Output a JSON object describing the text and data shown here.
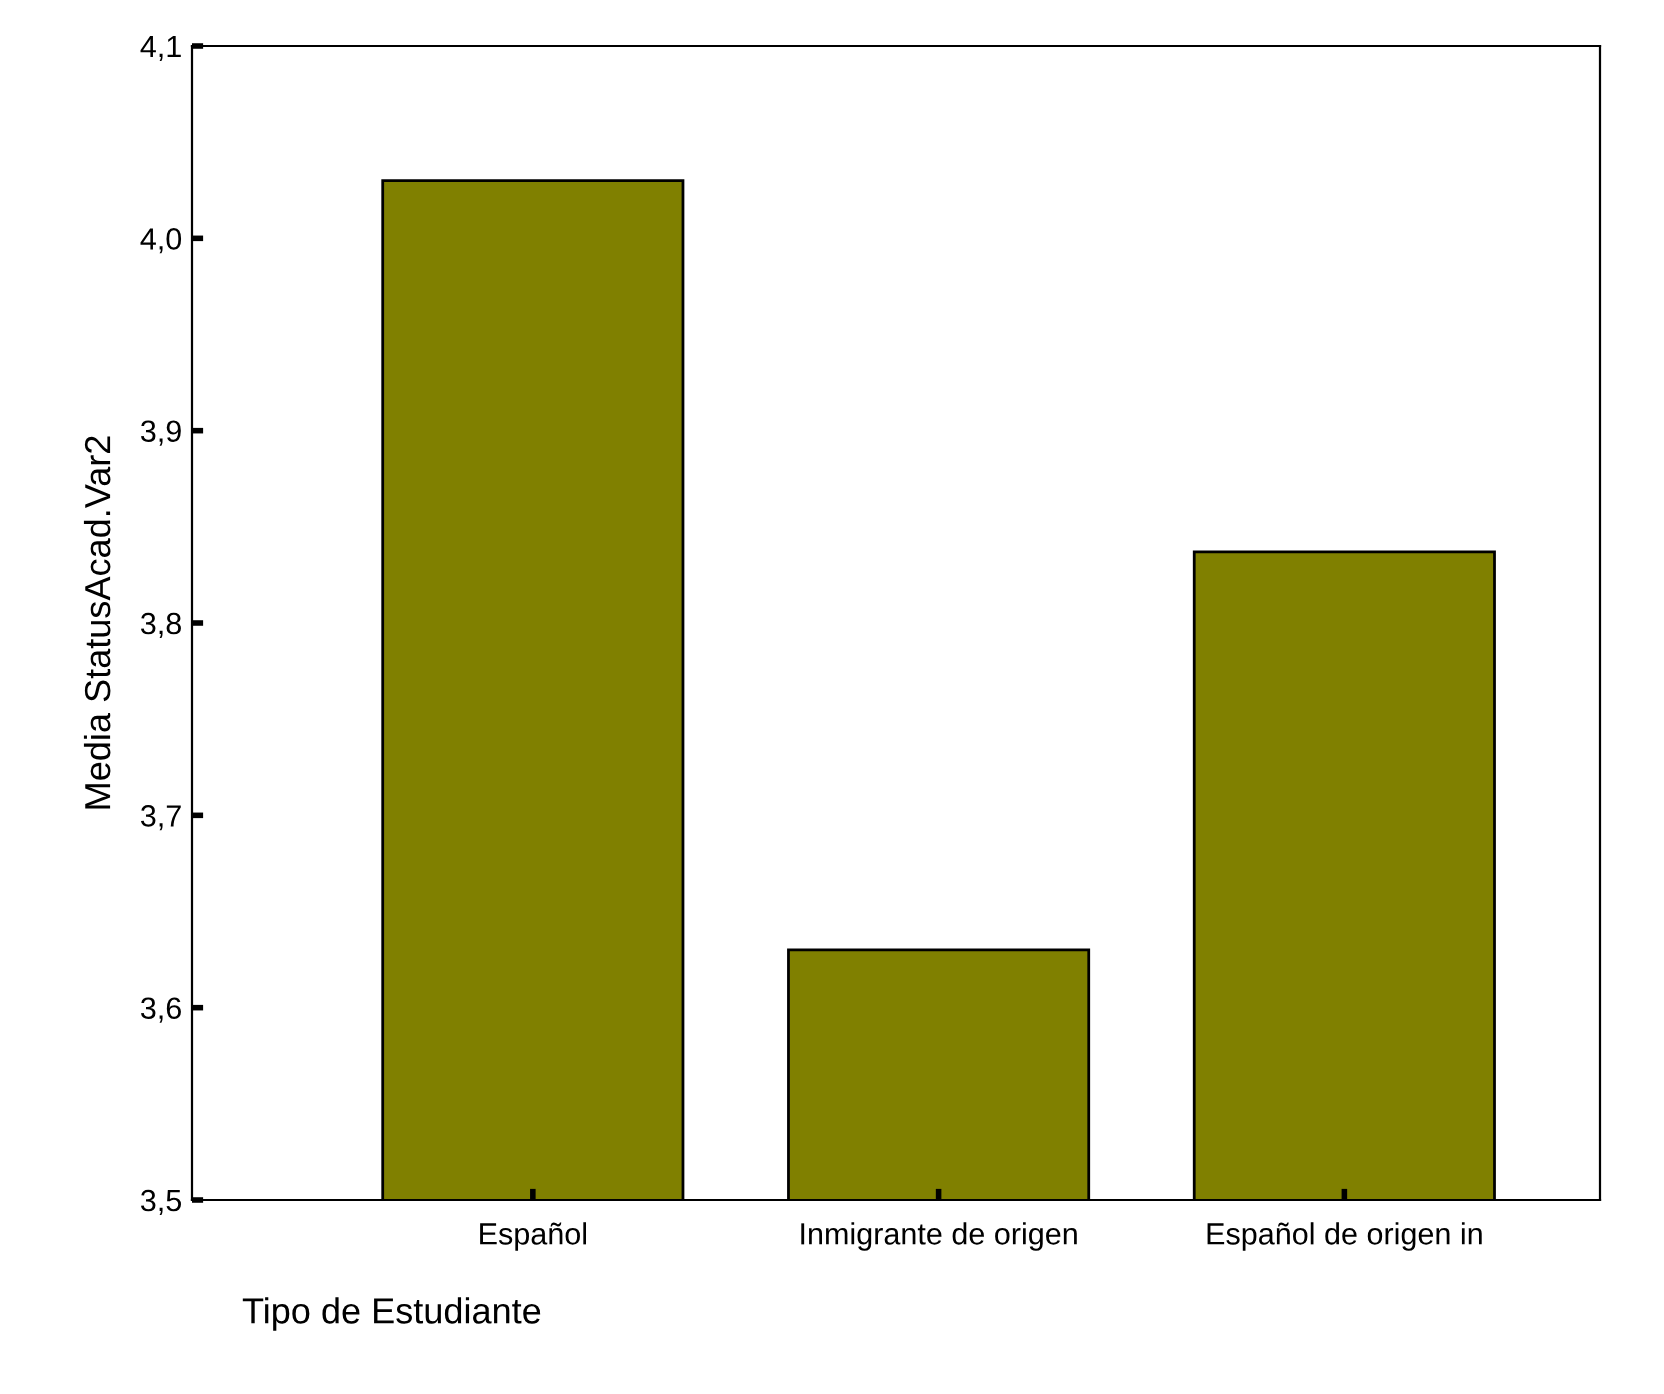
{
  "chart_data": {
    "type": "bar",
    "xlabel": "Tipo de Estudiante",
    "ylabel": "Media StatusAcad.Var2",
    "categories": [
      "Español",
      "Inmigrante de origen",
      "Español de origen in"
    ],
    "values": [
      4.03,
      3.63,
      3.837
    ],
    "color": "#808000",
    "ylim": [
      3.5,
      4.1
    ],
    "yticks": [
      {
        "value": 3.5,
        "label": "3,5"
      },
      {
        "value": 3.6,
        "label": "3,6"
      },
      {
        "value": 3.7,
        "label": "3,7"
      },
      {
        "value": 3.8,
        "label": "3,8"
      },
      {
        "value": 3.9,
        "label": "3,9"
      },
      {
        "value": 4.0,
        "label": "4,0"
      },
      {
        "value": 4.1,
        "label": "4,1"
      }
    ],
    "grid": false,
    "legend": false
  }
}
